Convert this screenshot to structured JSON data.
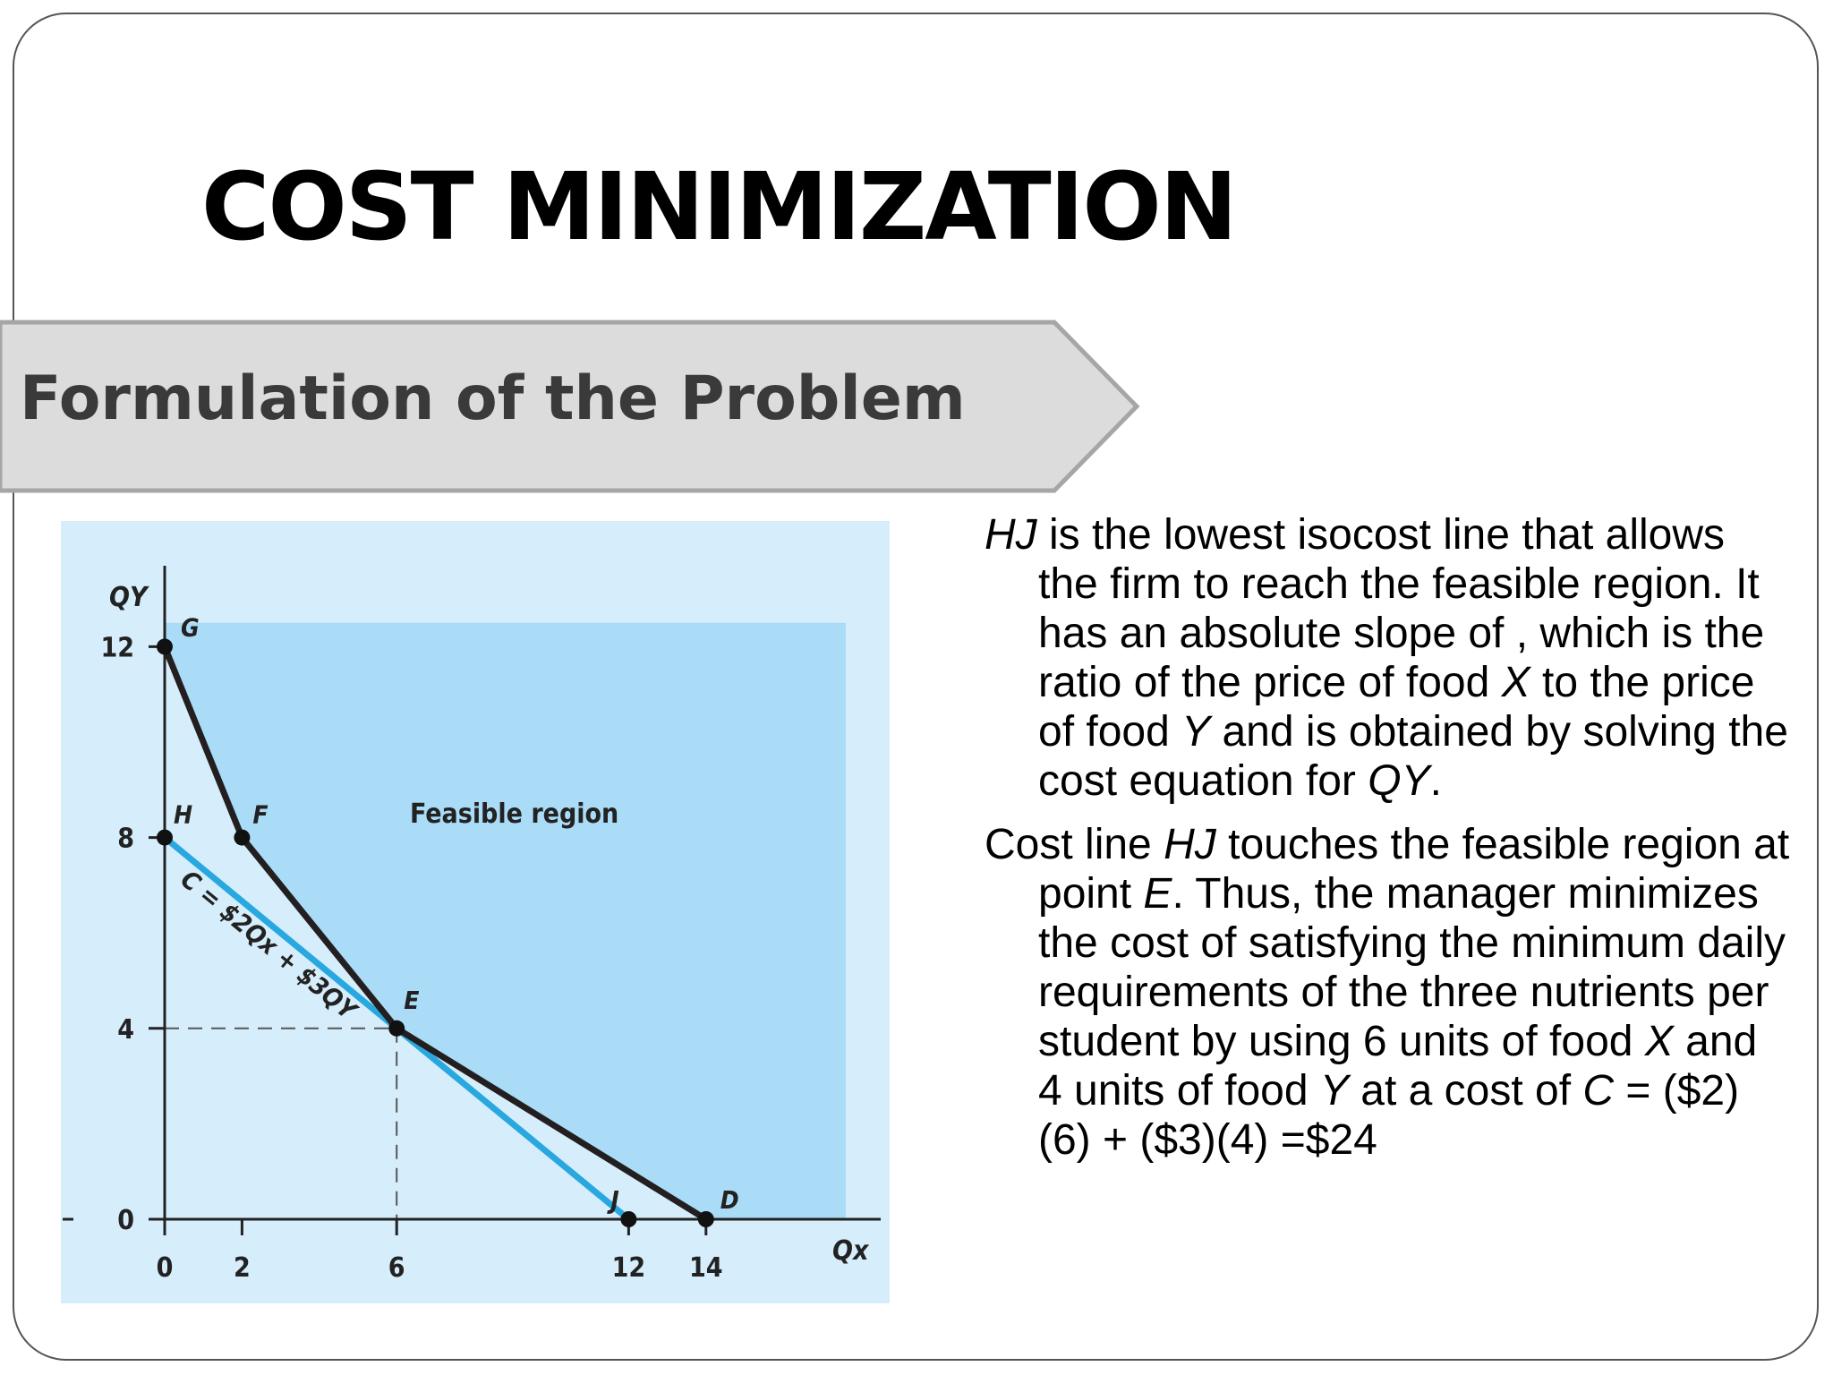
{
  "slide": {
    "title": "COST MINIMIZATION",
    "banner": "Formulation of the Problem"
  },
  "text": {
    "p1": {
      "runs": [
        {
          "t": "HJ",
          "i": true
        },
        {
          "t": " is the lowest isocost line that allows the firm to reach the feasible region. It has an absolute slope of , which is the ratio of the price of food ",
          "i": false
        },
        {
          "t": "X",
          "i": true
        },
        {
          "t": " to the price of food ",
          "i": false
        },
        {
          "t": "Y",
          "i": true
        },
        {
          "t": " and is obtained by solving the cost equation for ",
          "i": false
        },
        {
          "t": "QY",
          "i": true
        },
        {
          "t": ".",
          "i": false
        }
      ]
    },
    "p2": {
      "runs": [
        {
          "t": "Cost line ",
          "i": false
        },
        {
          "t": "HJ",
          "i": true
        },
        {
          "t": " touches the feasible region at point ",
          "i": false
        },
        {
          "t": "E",
          "i": true
        },
        {
          "t": ". Thus, the manager minimizes the cost of satisfying the minimum daily requirements of the three nutrients per student by using 6 units of food ",
          "i": false
        },
        {
          "t": "X",
          "i": true
        },
        {
          "t": " and 4 units of food ",
          "i": false
        },
        {
          "t": "Y",
          "i": true
        },
        {
          "t": " at a cost of ",
          "i": false
        },
        {
          "t": "C",
          "i": true
        },
        {
          "t": " = ($2)(6) + ($3)(4) =$24",
          "i": false
        }
      ]
    }
  },
  "chart_data": {
    "type": "line",
    "xlabel": "Qx",
    "ylabel": "QY",
    "xlim": [
      0,
      17
    ],
    "ylim": [
      0,
      14
    ],
    "x_ticks": [
      0,
      2,
      6,
      12,
      14
    ],
    "y_ticks": [
      0,
      4,
      8,
      12
    ],
    "region_label": "Feasible region",
    "isocost_label": "C = $2Qx + $3QY",
    "feasible_boundary": {
      "points": [
        {
          "name": "G",
          "x": 0,
          "y": 12
        },
        {
          "name": "F",
          "x": 2,
          "y": 8
        },
        {
          "name": "E",
          "x": 6,
          "y": 4
        },
        {
          "name": "D",
          "x": 14,
          "y": 0
        }
      ]
    },
    "isocost_line": {
      "points": [
        {
          "name": "H",
          "x": 0,
          "y": 8
        },
        {
          "name": "J",
          "x": 12,
          "y": 0
        }
      ]
    },
    "optimum": {
      "name": "E",
      "x": 6,
      "y": 4
    },
    "colors": {
      "outer_bg": "#d6eefb",
      "region": "#aadcf7",
      "boundary": "#231f20",
      "isocost": "#29a8e0"
    }
  }
}
